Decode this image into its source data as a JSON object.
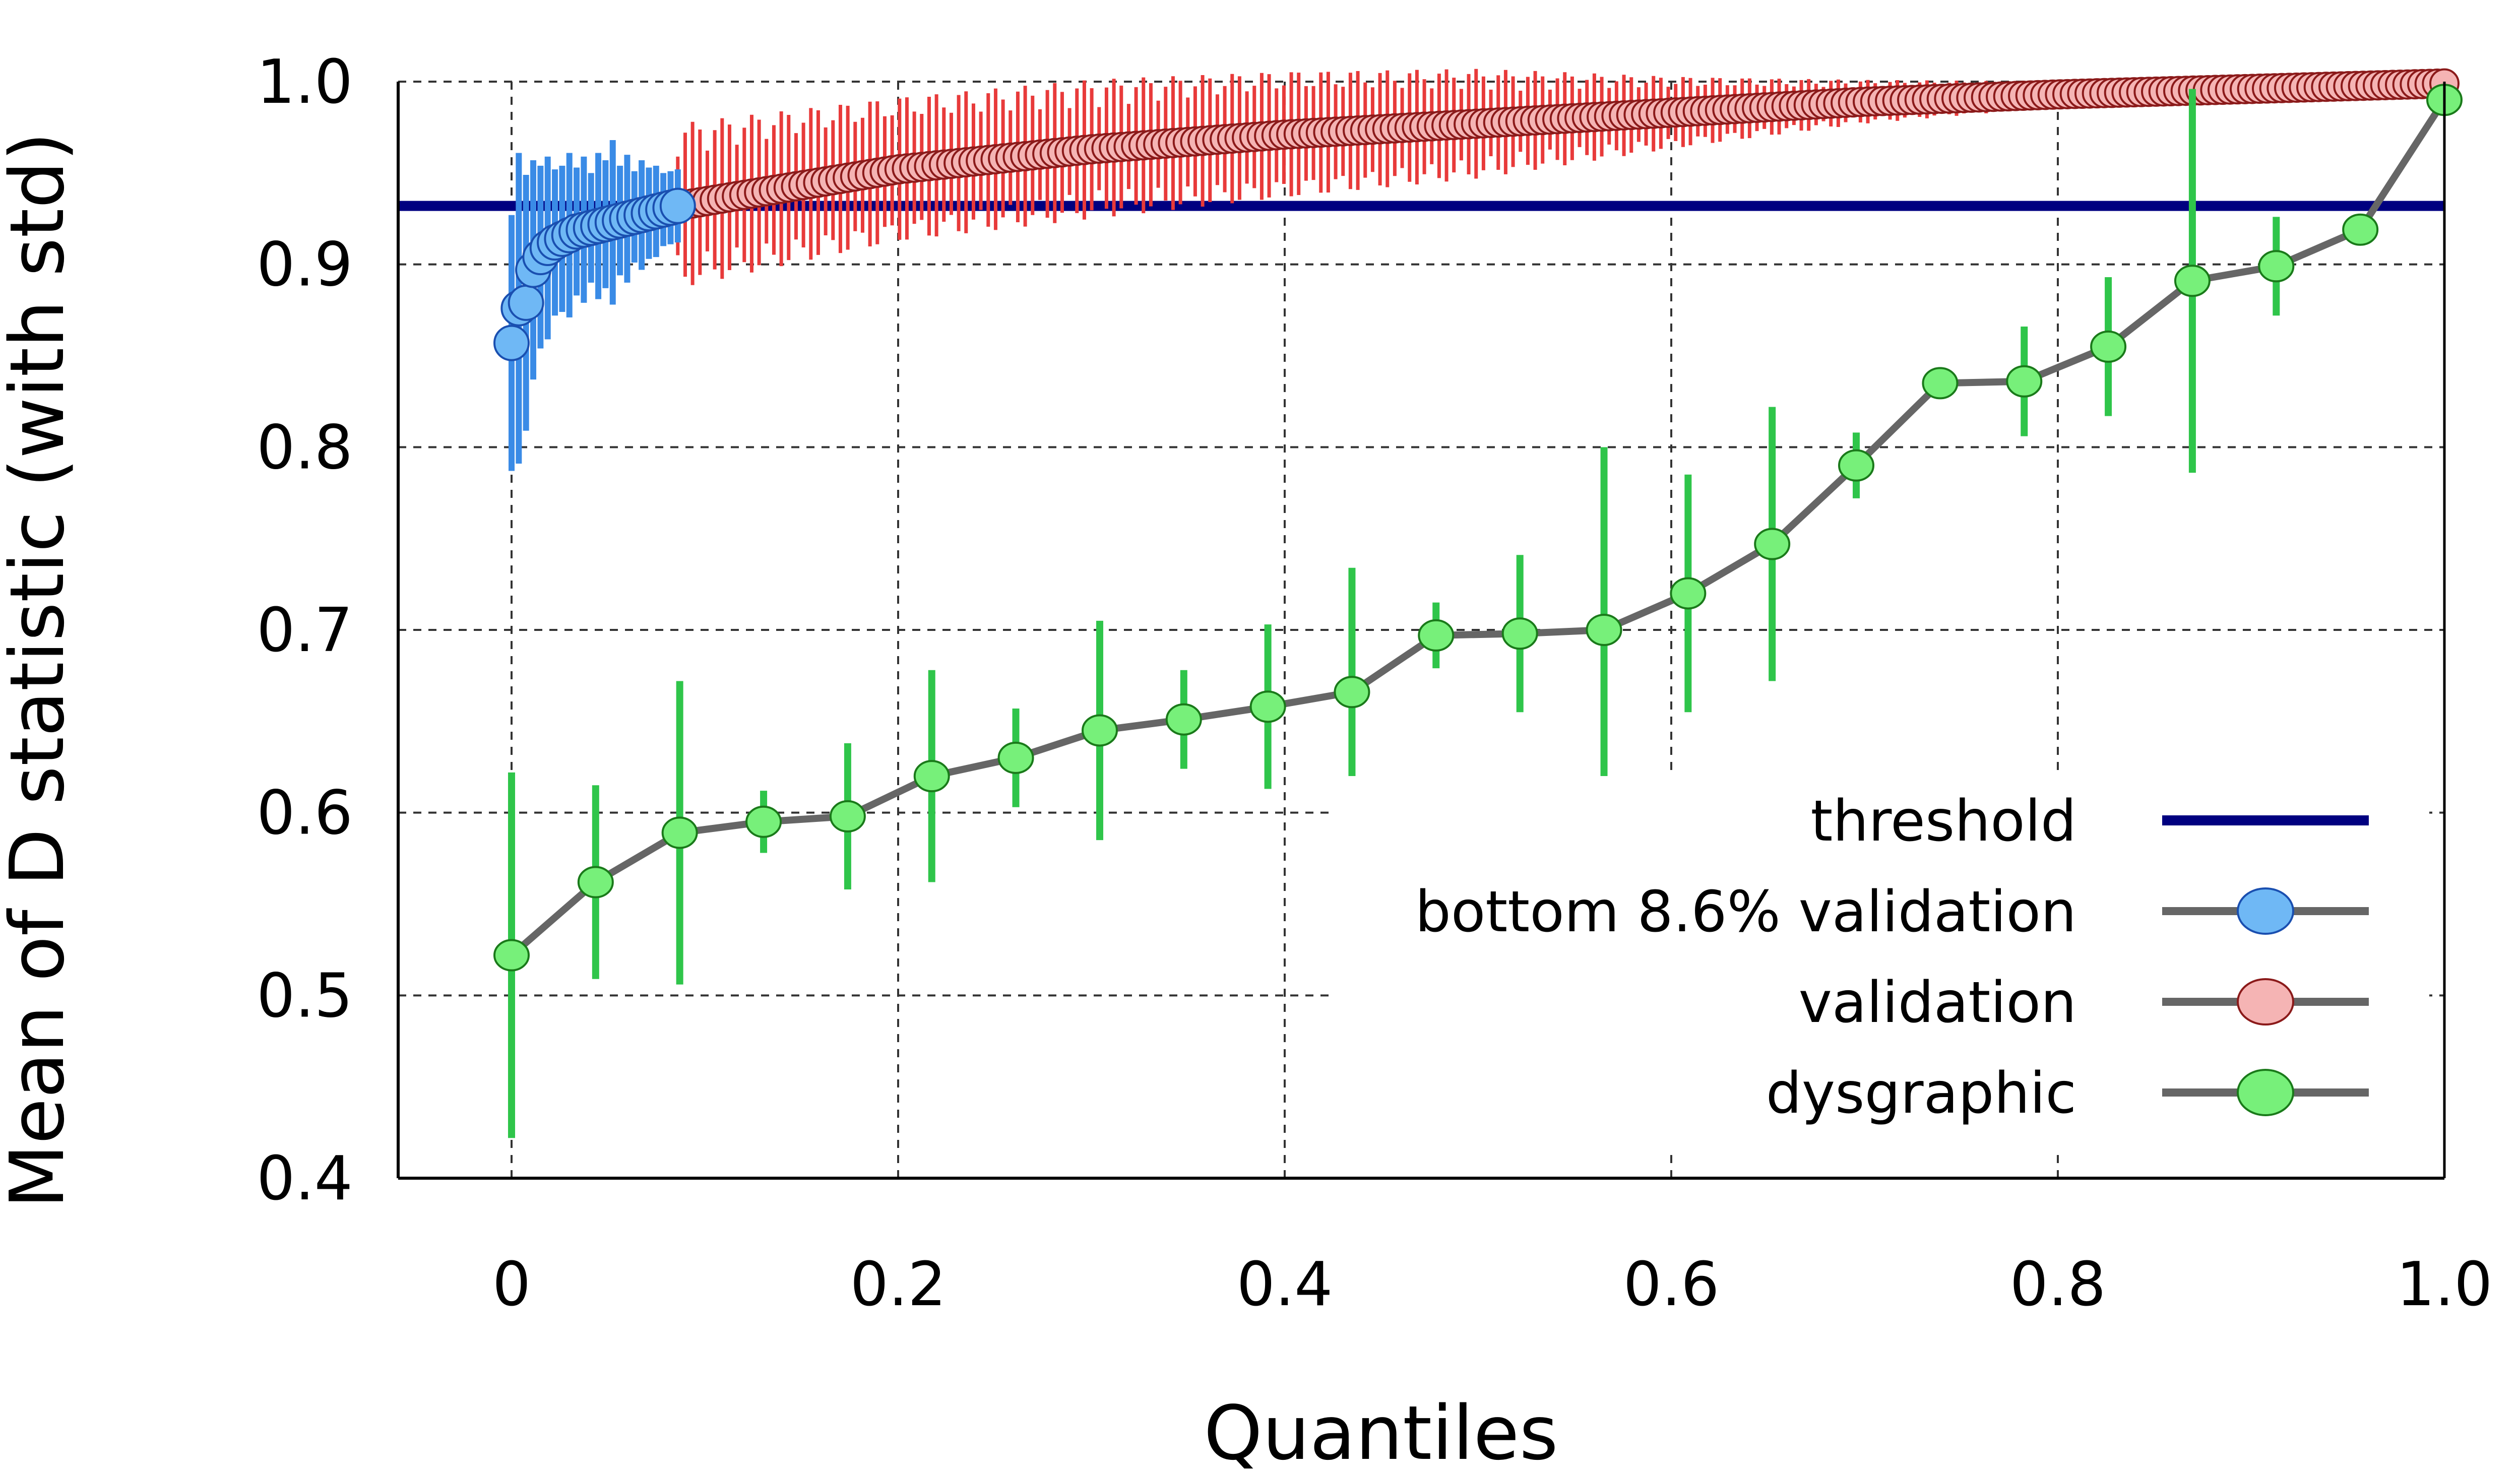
{
  "chart_data": {
    "type": "line",
    "xlabel": "Quantiles",
    "ylabel": "Mean of D statistic (with std)",
    "xlim": [
      -0.06,
      1.0
    ],
    "ylim": [
      0.4,
      1.0
    ],
    "x_ticks": [
      "0",
      "0.2",
      "0.4",
      "0.6",
      "0.8",
      "1.0"
    ],
    "x_tick_values": [
      0,
      0.2,
      0.4,
      0.6,
      0.8,
      1.0
    ],
    "y_ticks": [
      "0.4",
      "0.5",
      "0.6",
      "0.7",
      "0.8",
      "0.9",
      "1.0"
    ],
    "y_tick_values": [
      0.4,
      0.5,
      0.6,
      0.7,
      0.8,
      0.9,
      1.0
    ],
    "grid": true,
    "legend_position": "lower-right",
    "threshold": {
      "name": "threshold",
      "value": 0.932,
      "color": "#000080"
    },
    "series": [
      {
        "name": "bottom 8.6% validation",
        "marker_color": "#6fb8f5",
        "edge_color": "#1a4fb0",
        "error_color": "#3a8be6",
        "line_color": "#666666",
        "x_start": 0.0,
        "x_end": 0.086,
        "count": 24,
        "mean": [
          0.857,
          0.876,
          0.879,
          0.897,
          0.904,
          0.909,
          0.912,
          0.914,
          0.916,
          0.918,
          0.919,
          0.92,
          0.921,
          0.922,
          0.923,
          0.924,
          0.925,
          0.926,
          0.927,
          0.928,
          0.929,
          0.93,
          0.931,
          0.932
        ],
        "std": [
          0.07,
          0.085,
          0.07,
          0.06,
          0.05,
          0.05,
          0.04,
          0.04,
          0.045,
          0.035,
          0.04,
          0.03,
          0.04,
          0.035,
          0.045,
          0.03,
          0.035,
          0.025,
          0.03,
          0.025,
          0.025,
          0.02,
          0.02,
          0.02
        ]
      },
      {
        "name": "validation",
        "marker_color": "#f5b4b4",
        "edge_color": "#8b1a1a",
        "error_color": "#e83a3a",
        "line_color": "#666666",
        "x_start": 0.086,
        "x_end": 1.0,
        "count": 240,
        "mean_anchors": {
          "x": [
            0.086,
            0.2,
            0.3,
            0.4,
            0.5,
            0.6,
            0.7,
            0.8,
            0.9,
            1.0
          ],
          "y": [
            0.932,
            0.952,
            0.963,
            0.971,
            0.977,
            0.983,
            0.989,
            0.993,
            0.996,
            0.999
          ]
        },
        "std_anchors": {
          "x": [
            0.086,
            0.2,
            0.3,
            0.4,
            0.5,
            0.6,
            0.7,
            0.8,
            0.9,
            1.0
          ],
          "y": [
            0.045,
            0.04,
            0.038,
            0.035,
            0.03,
            0.02,
            0.012,
            0.007,
            0.004,
            0.002
          ]
        }
      },
      {
        "name": "dysgraphic",
        "marker_color": "#77f07a",
        "edge_color": "#1a7a1a",
        "error_color": "#2fc54a",
        "line_color": "#666666",
        "x": [
          0.0,
          0.0435,
          0.087,
          0.1304,
          0.1739,
          0.2174,
          0.2609,
          0.3043,
          0.3478,
          0.3913,
          0.4348,
          0.4783,
          0.5217,
          0.5652,
          0.6087,
          0.6522,
          0.6957,
          0.7391,
          0.7826,
          0.8261,
          0.8696,
          0.913,
          0.9565,
          1.0
        ],
        "mean": [
          0.522,
          0.562,
          0.589,
          0.595,
          0.598,
          0.62,
          0.63,
          0.645,
          0.651,
          0.658,
          0.666,
          0.697,
          0.698,
          0.7,
          0.72,
          0.747,
          0.79,
          0.835,
          0.836,
          0.855,
          0.891,
          0.899,
          0.919,
          0.99
        ],
        "std": [
          0.1,
          0.053,
          0.083,
          0.017,
          0.04,
          0.058,
          0.027,
          0.06,
          0.027,
          0.045,
          0.068,
          0.018,
          0.043,
          0.1,
          0.065,
          0.075,
          0.018,
          0.008,
          0.03,
          0.038,
          0.105,
          0.027,
          0.0,
          0.0
        ]
      }
    ]
  }
}
